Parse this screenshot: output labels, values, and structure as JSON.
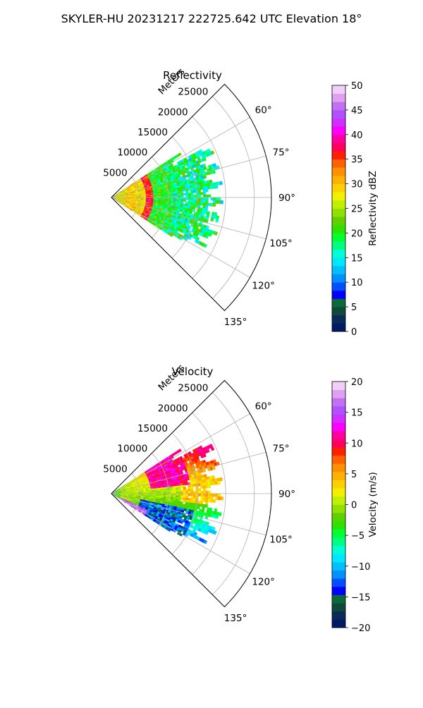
{
  "figure": {
    "suptitle": "SKYLER-HU  20231217  222725.642 UTC Elevation 18°"
  },
  "chart_data": [
    {
      "type": "polar",
      "title": "Reflectivity",
      "radial_label": "Meters",
      "radial_ticks": [
        "5000",
        "10000",
        "15000",
        "20000",
        "25000"
      ],
      "radial_tick_values": [
        5000,
        10000,
        15000,
        20000,
        25000
      ],
      "rmax": 28000,
      "azimuth_ticks": [
        "60°",
        "75°",
        "90°",
        "105°",
        "120°",
        "135°"
      ],
      "azimuth_tick_values": [
        60,
        75,
        90,
        105,
        120,
        135
      ],
      "azimuth_range": [
        45,
        135
      ],
      "data_sector": {
        "azimuth": [
          57,
          123
        ],
        "range_max": 20000
      },
      "colorbar": {
        "label": "Reflectivity dBZ",
        "range": [
          0,
          50
        ],
        "ticks": [
          "0",
          "5",
          "10",
          "15",
          "20",
          "25",
          "30",
          "35",
          "40",
          "45",
          "50"
        ],
        "tick_values": [
          0,
          5,
          10,
          15,
          20,
          25,
          30,
          35,
          40,
          45,
          50
        ],
        "colors": [
          "#001a66",
          "#0a2a5a",
          "#0d4a3a",
          "#0a6a3a",
          "#0000ff",
          "#0050ff",
          "#0090ff",
          "#00c0ff",
          "#00e8ff",
          "#00ffd5",
          "#00ff80",
          "#00ff30",
          "#30e000",
          "#60d000",
          "#90e000",
          "#c0f000",
          "#f0f000",
          "#ffd000",
          "#ffb000",
          "#ff9000",
          "#ff6000",
          "#ff2000",
          "#ff0060",
          "#ff00a0",
          "#ff00ff",
          "#d030ff",
          "#b050ff",
          "#c070f0",
          "#e0a0f0",
          "#f0d0f8"
        ]
      }
    },
    {
      "type": "polar",
      "title": "Velocity",
      "radial_label": "Meters",
      "radial_ticks": [
        "5000",
        "10000",
        "15000",
        "20000",
        "25000"
      ],
      "radial_tick_values": [
        5000,
        10000,
        15000,
        20000,
        25000
      ],
      "rmax": 28000,
      "azimuth_ticks": [
        "60°",
        "75°",
        "90°",
        "105°",
        "120°",
        "135°"
      ],
      "azimuth_tick_values": [
        60,
        75,
        90,
        105,
        120,
        135
      ],
      "azimuth_range": [
        45,
        135
      ],
      "data_sector": {
        "azimuth": [
          57,
          123
        ],
        "range_max": 20000
      },
      "colorbar": {
        "label": "Velocity (m/s)",
        "range": [
          -20,
          20
        ],
        "ticks": [
          "−20",
          "−15",
          "−10",
          "−5",
          "0",
          "5",
          "10",
          "15",
          "20"
        ],
        "tick_values": [
          -20,
          -15,
          -10,
          -5,
          0,
          5,
          10,
          15,
          20
        ],
        "colors": [
          "#001a66",
          "#0a2a5a",
          "#0d4a3a",
          "#0a6a3a",
          "#0000ff",
          "#0050ff",
          "#0090ff",
          "#00c0ff",
          "#00e8ff",
          "#00ffd5",
          "#00ff80",
          "#00ff30",
          "#30e000",
          "#60d000",
          "#90e000",
          "#c0f000",
          "#f0f000",
          "#ffd000",
          "#ffb000",
          "#ff9000",
          "#ff6000",
          "#ff2000",
          "#ff0060",
          "#ff00a0",
          "#ff00ff",
          "#d030ff",
          "#b050ff",
          "#c070f0",
          "#e0a0f0",
          "#f0d0f8"
        ]
      }
    }
  ]
}
